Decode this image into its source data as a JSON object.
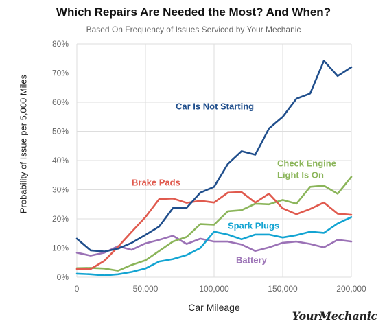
{
  "chart_data": {
    "type": "line",
    "title": "Which Repairs Are Needed the Most? And When?",
    "subtitle": "Based On Frequency of Issues Serviced by Your Mechanic",
    "xlabel": "Car Mileage",
    "ylabel": "Probability of Issue per 5,000 Miles",
    "xlim": [
      0,
      200000
    ],
    "ylim": [
      0,
      80
    ],
    "x_ticks": [
      0,
      50000,
      100000,
      150000,
      200000
    ],
    "x_tick_labels": [
      "0",
      "50,000",
      "100,000",
      "150,000",
      "200,000"
    ],
    "y_ticks": [
      0,
      10,
      20,
      30,
      40,
      50,
      60,
      70,
      80
    ],
    "y_tick_labels": [
      "0%",
      "10%",
      "20%",
      "30%",
      "40%",
      "50%",
      "60%",
      "70%",
      "80%"
    ],
    "grid": true,
    "x": [
      0,
      10000,
      20000,
      30000,
      40000,
      50000,
      60000,
      70000,
      80000,
      90000,
      100000,
      110000,
      120000,
      130000,
      140000,
      150000,
      160000,
      170000,
      180000,
      190000,
      200000
    ],
    "series": [
      {
        "name": "Car Is Not Starting",
        "color": "#1f4e8c",
        "values": [
          13.2,
          9.2,
          8.8,
          9.8,
          11.8,
          14.5,
          17.4,
          23.7,
          23.8,
          29.0,
          31.0,
          38.8,
          43.2,
          42.0,
          51.0,
          55.0,
          61.2,
          63.0,
          74.2,
          69.0,
          72.0
        ],
        "label": "Car Is Not Starting",
        "label_anchor": [
          72000,
          57.5
        ]
      },
      {
        "name": "Brake Pads",
        "color": "#e05a4e",
        "values": [
          2.8,
          2.8,
          5.6,
          10.4,
          15.6,
          20.6,
          26.8,
          27.0,
          25.5,
          26.2,
          25.6,
          29.0,
          29.2,
          25.6,
          28.6,
          23.6,
          21.6,
          23.4,
          25.6,
          21.8,
          21.4
        ],
        "label": "Brake Pads",
        "label_anchor": [
          40000,
          31.4
        ]
      },
      {
        "name": "Check Engine Light Is On",
        "color": "#8bb55a",
        "values": [
          3.1,
          3.2,
          3.0,
          2.2,
          4.2,
          5.8,
          9.0,
          12.2,
          13.8,
          18.2,
          18.0,
          22.6,
          23.0,
          25.2,
          25.0,
          26.5,
          25.2,
          31.0,
          31.4,
          28.6,
          34.4
        ],
        "label": "Check Engine\nLight Is On",
        "label_anchor": [
          146000,
          38.0
        ]
      },
      {
        "name": "Spark Plugs",
        "color": "#13a4d2",
        "values": [
          1.2,
          1.0,
          0.6,
          1.0,
          1.8,
          3.0,
          5.4,
          6.2,
          7.6,
          10.0,
          15.6,
          14.6,
          13.0,
          14.6,
          14.6,
          13.6,
          14.4,
          15.6,
          15.2,
          18.4,
          20.6
        ],
        "label": "Spark Plugs",
        "label_anchor": [
          110000,
          16.6
        ]
      },
      {
        "name": "Battery",
        "color": "#9b72b6",
        "values": [
          8.4,
          7.4,
          8.4,
          10.6,
          9.4,
          11.6,
          12.8,
          14.2,
          11.4,
          13.2,
          12.2,
          12.2,
          11.2,
          9.0,
          10.2,
          11.8,
          12.2,
          11.4,
          10.2,
          12.8,
          12.2
        ]
      }
    ],
    "series_labels": [
      {
        "series": "Car Is Not Starting",
        "text": "Car Is Not Starting",
        "color": "#1f4e8c"
      },
      {
        "series": "Brake Pads",
        "text": "Brake Pads",
        "color": "#e05a4e"
      },
      {
        "series": "Check Engine Light Is On",
        "lines": [
          "Check Engine",
          "Light Is On"
        ],
        "color": "#8bb55a"
      },
      {
        "series": "Spark Plugs",
        "text": "Spark Plugs",
        "color": "#13a4d2"
      },
      {
        "series": "Battery",
        "text": "Battery",
        "color": "#9b72b6"
      }
    ]
  },
  "brand": {
    "logo_text": "YourMechanic"
  },
  "colors": {
    "grid": "#dddddd",
    "axis_text": "#666666",
    "background": "#ffffff"
  }
}
